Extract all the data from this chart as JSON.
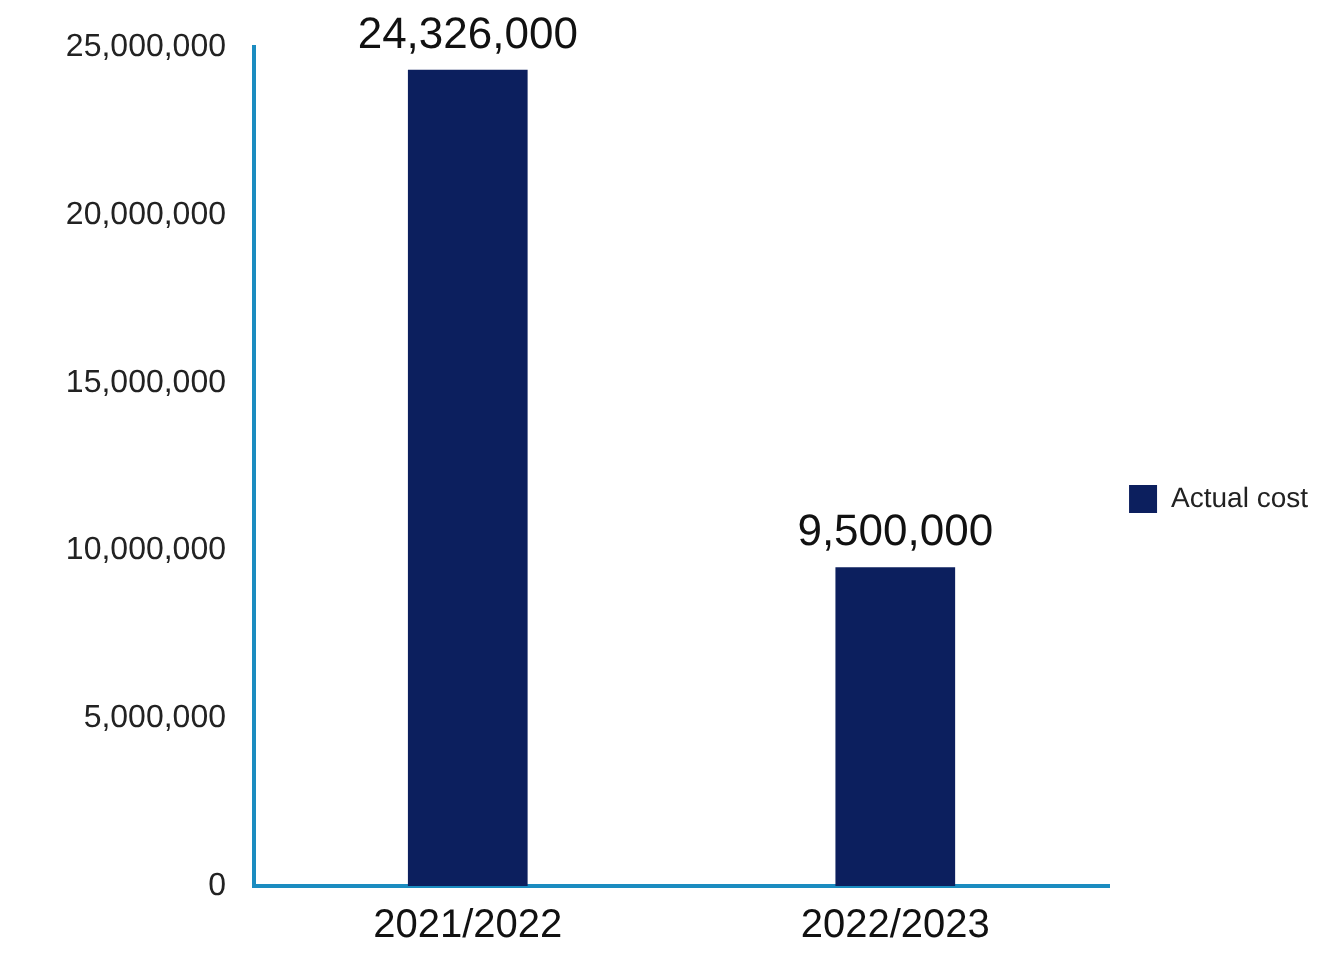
{
  "chart_data": {
    "type": "bar",
    "categories": [
      "2021/2022",
      "2022/2023"
    ],
    "series": [
      {
        "name": "Actual cost",
        "color": "#0c1f5e",
        "values": [
          24326000,
          9500000
        ],
        "value_labels": [
          "24,326,000",
          "9,500,000"
        ]
      }
    ],
    "ylim": [
      0,
      25000000
    ],
    "yticks": [
      {
        "value": 0,
        "label": "0"
      },
      {
        "value": 5000000,
        "label": "5,000,000"
      },
      {
        "value": 10000000,
        "label": "10,000,000"
      },
      {
        "value": 15000000,
        "label": "15,000,000"
      },
      {
        "value": 20000000,
        "label": "20,000,000"
      },
      {
        "value": 25000000,
        "label": "25,000,000"
      }
    ],
    "grid": false,
    "legend": "right"
  }
}
